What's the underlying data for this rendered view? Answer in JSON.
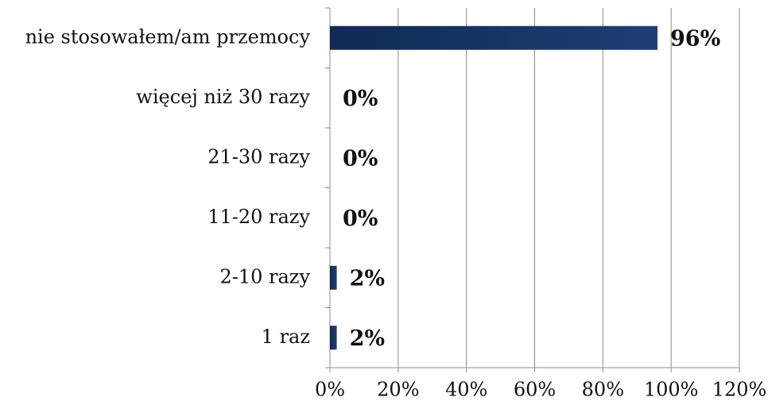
{
  "chart_data": {
    "type": "bar",
    "orientation": "horizontal",
    "categories": [
      "nie stosowałem/am przemocy",
      "więcej niż 30 razy",
      "21-30 razy",
      "11-20 razy",
      "2-10 razy",
      "1 raz"
    ],
    "values": [
      96,
      0,
      0,
      0,
      2,
      2
    ],
    "value_labels": [
      "96%",
      "0%",
      "0%",
      "0%",
      "2%",
      "2%"
    ],
    "color": "#1f3f73",
    "xlim": [
      0,
      120
    ],
    "xticks": [
      {
        "value": 0,
        "label": "0%"
      },
      {
        "value": 20,
        "label": "20%"
      },
      {
        "value": 40,
        "label": "40%"
      },
      {
        "value": 60,
        "label": "60%"
      },
      {
        "value": 80,
        "label": "80%"
      },
      {
        "value": 100,
        "label": "100%"
      },
      {
        "value": 120,
        "label": "120%"
      }
    ],
    "grid": true
  }
}
